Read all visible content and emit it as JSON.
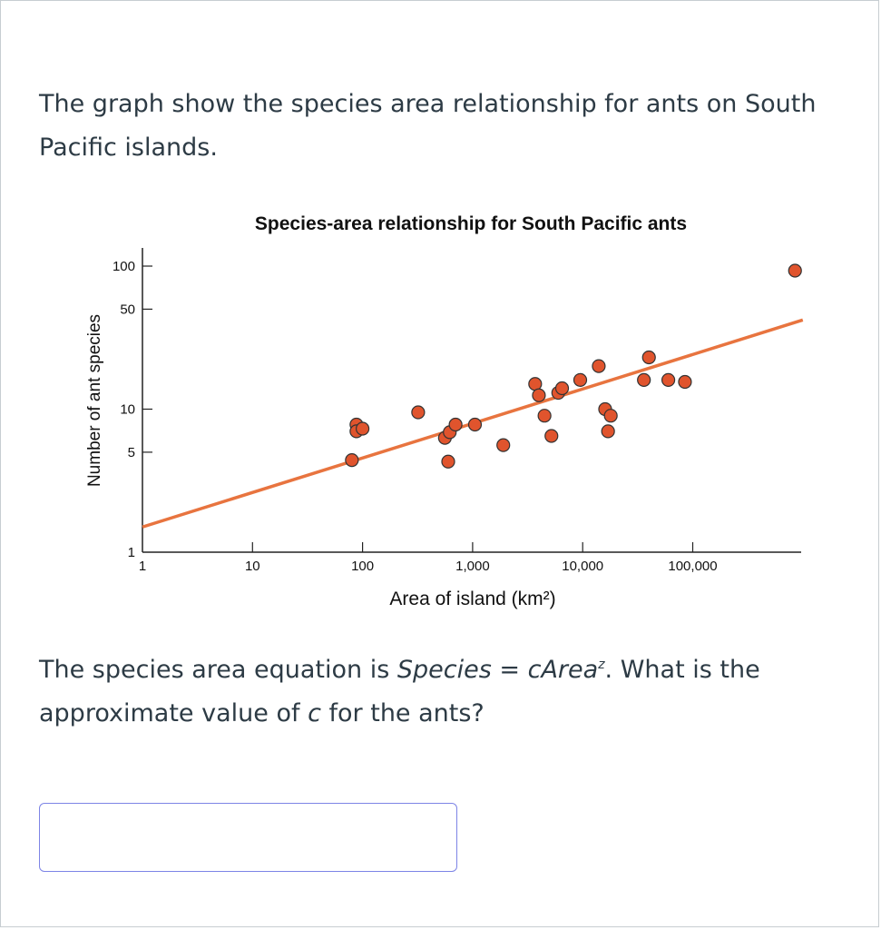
{
  "question": {
    "intro": "The graph show the species area relationship for ants on South Pacific islands.",
    "prompt_before": "The species area equation is ",
    "equation_lhs": "Species",
    "equation_eq": " = ",
    "equation_c": "c",
    "equation_area": "Area",
    "equation_exp": "z",
    "prompt_mid": ". What is the approximate value of ",
    "prompt_var": "c",
    "prompt_after": " for the ants?"
  },
  "answer": {
    "value": ""
  },
  "colors": {
    "point": "#e0542d",
    "line": "#e8743f",
    "axis": "#222222"
  },
  "chart_data": {
    "type": "scatter",
    "title": "Species-area relationship for South Pacific ants",
    "xlabel": "Area of island (km²)",
    "ylabel": "Number of ant species",
    "x_scale": "log",
    "y_scale": "log",
    "xlim": [
      1,
      1000000
    ],
    "ylim": [
      1,
      100
    ],
    "x_ticks": [
      1,
      10,
      100,
      1000,
      10000,
      100000
    ],
    "x_tick_labels": [
      "1",
      "10",
      "100",
      "1,000",
      "10,000",
      "100,000"
    ],
    "y_ticks": [
      1,
      5,
      10,
      50,
      100
    ],
    "y_tick_labels": [
      "1",
      "5",
      "10",
      "50",
      "100"
    ],
    "points": [
      {
        "x": 80,
        "y": 4.4
      },
      {
        "x": 88,
        "y": 7.8
      },
      {
        "x": 88,
        "y": 7.0
      },
      {
        "x": 100,
        "y": 7.3
      },
      {
        "x": 320,
        "y": 9.5
      },
      {
        "x": 560,
        "y": 6.3
      },
      {
        "x": 600,
        "y": 4.3
      },
      {
        "x": 620,
        "y": 6.9
      },
      {
        "x": 700,
        "y": 7.8
      },
      {
        "x": 1050,
        "y": 7.8
      },
      {
        "x": 1900,
        "y": 5.6
      },
      {
        "x": 3700,
        "y": 15.0
      },
      {
        "x": 4000,
        "y": 12.5
      },
      {
        "x": 4500,
        "y": 9.0
      },
      {
        "x": 5200,
        "y": 6.5
      },
      {
        "x": 6000,
        "y": 13.0
      },
      {
        "x": 6500,
        "y": 14.0
      },
      {
        "x": 9500,
        "y": 16.0
      },
      {
        "x": 14000,
        "y": 20.0
      },
      {
        "x": 16000,
        "y": 10.0
      },
      {
        "x": 18000,
        "y": 9.0
      },
      {
        "x": 17000,
        "y": 7.0
      },
      {
        "x": 36000,
        "y": 16.0
      },
      {
        "x": 40000,
        "y": 23.0
      },
      {
        "x": 60000,
        "y": 16.0
      },
      {
        "x": 85000,
        "y": 15.5
      },
      {
        "x": 850000,
        "y": 93.0
      }
    ],
    "trendline": {
      "x": [
        1,
        1000000
      ],
      "y": [
        1.5,
        42
      ]
    }
  }
}
